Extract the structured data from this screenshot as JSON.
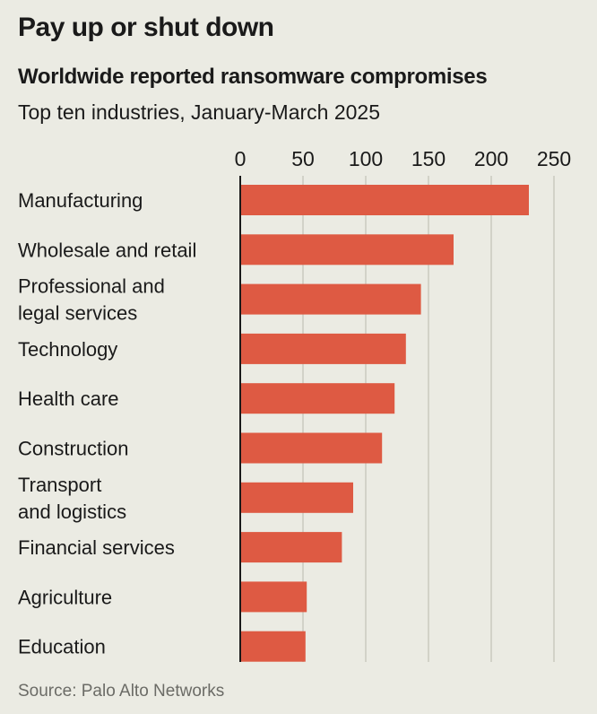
{
  "chart_data": {
    "type": "bar",
    "orientation": "horizontal",
    "title": "Pay up or shut down",
    "subtitle": "Worldwide reported ransomware compromises",
    "description": "Top ten industries, January-March 2025",
    "source": "Source: Palo Alto Networks",
    "categories": [
      [
        "Manufacturing"
      ],
      [
        "Wholesale and retail"
      ],
      [
        "Professional and",
        "legal services"
      ],
      [
        "Technology"
      ],
      [
        "Health care"
      ],
      [
        "Construction"
      ],
      [
        "Transport",
        "and logistics"
      ],
      [
        "Financial services"
      ],
      [
        "Agriculture"
      ],
      [
        "Education"
      ]
    ],
    "values": [
      230,
      170,
      144,
      132,
      123,
      113,
      90,
      81,
      53,
      52
    ],
    "xlim": [
      0,
      250
    ],
    "xticks": [
      0,
      50,
      100,
      150,
      200,
      250
    ],
    "xtick_labels": [
      "0",
      "50",
      "100",
      "150",
      "200",
      "250"
    ],
    "xaxis_position": "top",
    "grid": true,
    "colors": {
      "bar": "#de5a43",
      "background": "#ebebe3",
      "grid": "#c9c9c0",
      "axis": "#1a1a1a"
    }
  }
}
